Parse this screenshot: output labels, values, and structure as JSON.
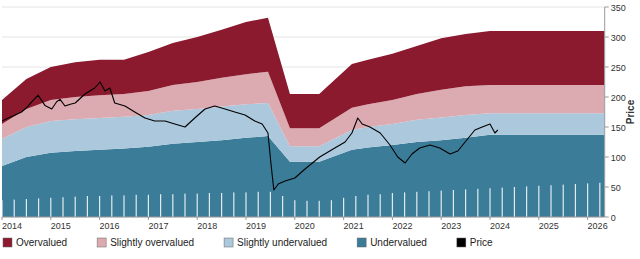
{
  "chart_data": {
    "type": "area",
    "stacked": true,
    "grid": true,
    "ylabel": "Price",
    "xlim": [
      2014,
      2026.35
    ],
    "xticks": [
      2014,
      2015,
      2016,
      2017,
      2018,
      2019,
      2020,
      2021,
      2022,
      2023,
      2024,
      2025,
      2026
    ],
    "ylim": [
      0,
      350
    ],
    "yticks": [
      0,
      50,
      100,
      150,
      200,
      250,
      300,
      350
    ],
    "legend": "bottom",
    "x": [
      2014,
      2014.5,
      2015,
      2015.5,
      2016,
      2016.5,
      2017,
      2017.5,
      2018,
      2018.5,
      2019,
      2019.45,
      2019.9,
      2020.5,
      2021.17,
      2021.5,
      2022,
      2022.5,
      2023,
      2023.5,
      2024,
      2025,
      2026,
      2026.35
    ],
    "series": [
      {
        "name": "Overvalued",
        "type": "area",
        "color": "#8b1a2e",
        "values": [
          40,
          50,
          55,
          58,
          59,
          57,
          65,
          70,
          75,
          80,
          87,
          90,
          57,
          57,
          73,
          74,
          77,
          80,
          86,
          87,
          90,
          90,
          90,
          90
        ]
      },
      {
        "name": "Slightly overvalued",
        "type": "area",
        "color": "#dcaab1",
        "values": [
          25,
          30,
          35,
          37,
          38,
          38,
          40,
          43,
          45,
          48,
          50,
          52,
          30,
          30,
          37,
          38,
          40,
          43,
          46,
          48,
          47,
          47,
          47,
          47
        ]
      },
      {
        "name": "Slightly undervalued",
        "type": "area",
        "color": "#abc8dc",
        "values": [
          45,
          50,
          53,
          53,
          53,
          53,
          53,
          55,
          55,
          56,
          56,
          55,
          26,
          26,
          33,
          34,
          35,
          37,
          38,
          38,
          36,
          36,
          36,
          36
        ]
      },
      {
        "name": "Undervalued",
        "type": "area",
        "color": "#3b7c99",
        "values": [
          85,
          100,
          107,
          110,
          112,
          114,
          117,
          122,
          125,
          128,
          132,
          135,
          92,
          92,
          112,
          116,
          120,
          125,
          128,
          132,
          137,
          137,
          137,
          137
        ]
      },
      {
        "name": "Price",
        "type": "line",
        "color": "#000000",
        "x": [
          2014.0,
          2014.15,
          2014.27,
          2014.4,
          2014.5,
          2014.61,
          2014.74,
          2014.88,
          2015.02,
          2015.12,
          2015.19,
          2015.29,
          2015.4,
          2015.5,
          2015.7,
          2015.9,
          2016.01,
          2016.11,
          2016.21,
          2016.31,
          2016.52,
          2016.72,
          2016.93,
          2017.13,
          2017.34,
          2017.54,
          2017.75,
          2017.95,
          2018.16,
          2018.36,
          2018.57,
          2018.77,
          2018.98,
          2019.18,
          2019.33,
          2019.45,
          2019.51,
          2019.57,
          2019.66,
          2019.8,
          2020.0,
          2020.21,
          2020.51,
          2020.82,
          2021.03,
          2021.17,
          2021.29,
          2021.38,
          2021.54,
          2021.75,
          2021.95,
          2022.11,
          2022.26,
          2022.4,
          2022.56,
          2022.77,
          2022.97,
          2023.18,
          2023.34,
          2023.49,
          2023.69,
          2023.84,
          2024.0,
          2024.1,
          2024.16
        ],
        "values": [
          160,
          166,
          170,
          175,
          182,
          192,
          203,
          186,
          180,
          192,
          196,
          185,
          188,
          190,
          205,
          215,
          225,
          210,
          215,
          190,
          185,
          175,
          165,
          160,
          160,
          155,
          150,
          165,
          180,
          185,
          180,
          175,
          170,
          160,
          155,
          140,
          90,
          45,
          55,
          60,
          65,
          80,
          100,
          115,
          125,
          140,
          165,
          155,
          150,
          140,
          120,
          100,
          90,
          105,
          115,
          120,
          115,
          105,
          110,
          125,
          145,
          150,
          155,
          140,
          145
        ]
      },
      {
        "type": "bar",
        "color": "#ffffff",
        "x": [
          2014,
          2014.25,
          2014.5,
          2014.75,
          2015,
          2015.25,
          2015.5,
          2015.75,
          2016,
          2016.25,
          2016.5,
          2016.75,
          2017,
          2017.25,
          2017.5,
          2017.75,
          2018,
          2018.25,
          2018.5,
          2018.75,
          2019,
          2019.25,
          2019.5,
          2019.75,
          2020,
          2020.25,
          2020.5,
          2020.75,
          2021,
          2021.25,
          2021.5,
          2021.75,
          2022,
          2022.25,
          2022.5,
          2022.75,
          2023,
          2023.25,
          2023.5,
          2023.75,
          2024,
          2024.25,
          2024.5,
          2024.75,
          2025,
          2025.25,
          2025.5,
          2025.75,
          2026,
          2026.25
        ],
        "values": [
          28,
          29,
          30,
          31,
          32,
          33,
          34,
          35,
          35,
          36,
          36,
          37,
          37,
          38,
          38,
          39,
          39,
          40,
          40,
          41,
          41,
          42,
          42,
          35,
          28,
          27,
          27,
          28,
          32,
          35,
          37,
          38,
          40,
          41,
          42,
          43,
          44,
          45,
          46,
          47,
          48,
          49,
          50,
          51,
          52,
          53,
          54,
          55,
          56,
          57
        ]
      }
    ]
  }
}
